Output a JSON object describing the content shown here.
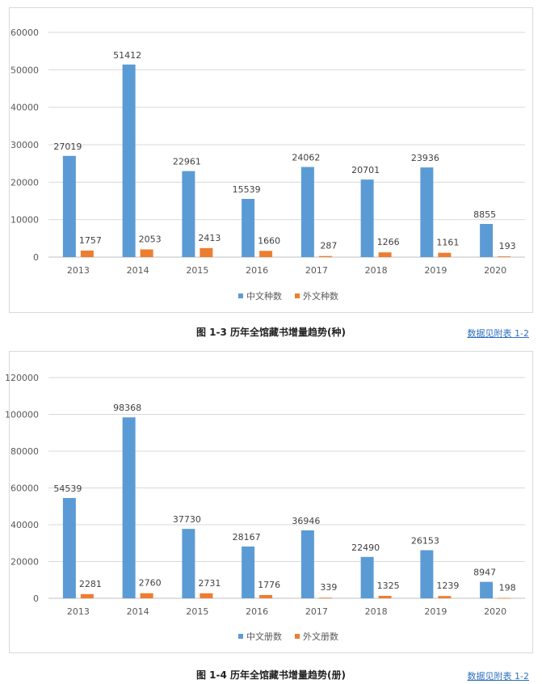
{
  "charts": [
    {
      "caption": "图 1-3  历年全馆藏书增量趋势(种)",
      "link": "数据见附表 1-2",
      "chart_data": {
        "type": "bar",
        "categories": [
          "2013",
          "2014",
          "2015",
          "2016",
          "2017",
          "2018",
          "2019",
          "2020"
        ],
        "series": [
          {
            "name": "中文种数",
            "values": [
              27019,
              51412,
              22961,
              15539,
              24062,
              20701,
              23936,
              8855
            ],
            "color": "#5b9bd5"
          },
          {
            "name": "外文种数",
            "values": [
              1757,
              2053,
              2413,
              1660,
              287,
              1266,
              1161,
              193
            ],
            "color": "#ed7d31"
          }
        ],
        "ylim": [
          0,
          60000
        ],
        "yticks": [
          "0",
          "10000",
          "20000",
          "30000",
          "40000",
          "50000",
          "60000"
        ],
        "grid": true,
        "legend": "bottom"
      }
    },
    {
      "caption": "图 1-4  历年全馆藏书增量趋势(册)",
      "link": "数据见附表 1-2",
      "chart_data": {
        "type": "bar",
        "categories": [
          "2013",
          "2014",
          "2015",
          "2016",
          "2017",
          "2018",
          "2019",
          "2020"
        ],
        "series": [
          {
            "name": "中文册数",
            "values": [
              54539,
              98368,
              37730,
              28167,
              36946,
              22490,
              26153,
              8947
            ],
            "color": "#5b9bd5"
          },
          {
            "name": "外文册数",
            "values": [
              2281,
              2760,
              2731,
              1776,
              339,
              1325,
              1239,
              198
            ],
            "color": "#ed7d31"
          }
        ],
        "ylim": [
          0,
          120000
        ],
        "yticks": [
          "0",
          "20000",
          "40000",
          "60000",
          "80000",
          "100000",
          "120000"
        ],
        "grid": true,
        "legend": "bottom"
      }
    }
  ]
}
